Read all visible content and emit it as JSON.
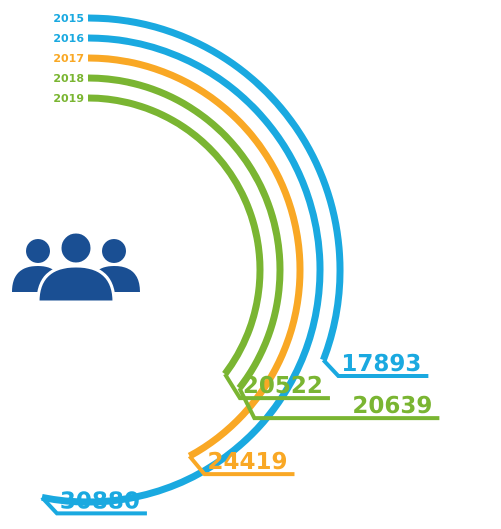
{
  "chart_data": {
    "type": "radial_bar",
    "categories": [
      "2015",
      "2016",
      "2017",
      "2018",
      "2019"
    ],
    "values": [
      17893,
      30880,
      24419,
      20639,
      20522
    ],
    "colors": [
      "#1aa9e0",
      "#1aa9e0",
      "#f9a825",
      "#7ab532",
      "#7ab532"
    ]
  }
}
